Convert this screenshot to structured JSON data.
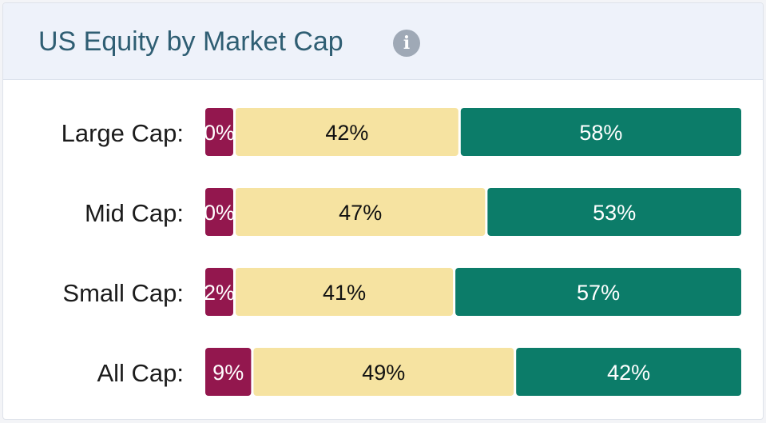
{
  "header": {
    "title": "US Equity by Market Cap",
    "info_icon": "info-icon"
  },
  "colors": {
    "header_bg": "#eef2fa",
    "title": "#2f5e73",
    "segment_1": "#93174e",
    "segment_2": "#f6e3a1",
    "segment_3": "#0c7c69"
  },
  "chart_data": {
    "type": "bar",
    "orientation": "horizontal",
    "stacked": true,
    "percent_stacked": true,
    "title": "US Equity by Market Cap",
    "xlabel": "",
    "ylabel": "",
    "legend": "none",
    "grid": false,
    "categories": [
      "Large Cap:",
      "Mid Cap:",
      "Small Cap:",
      "All Cap:"
    ],
    "series": [
      {
        "color": "#93174e",
        "label_color": "#ffffff",
        "values": [
          0,
          0,
          2,
          9
        ]
      },
      {
        "color": "#f6e3a1",
        "label_color": "#111111",
        "values": [
          42,
          47,
          41,
          49
        ]
      },
      {
        "color": "#0c7c69",
        "label_color": "#ffffff",
        "values": [
          58,
          53,
          57,
          42
        ]
      }
    ]
  }
}
